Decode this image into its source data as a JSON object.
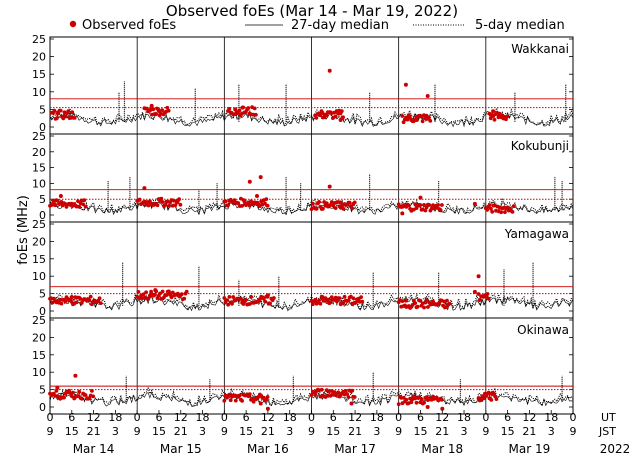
{
  "chart_data": {
    "type": "scatter",
    "title": "Observed foEs (Mar 14 - Mar 19, 2022)",
    "ylabel": "foEs (MHz)",
    "ylim": [
      0,
      25
    ],
    "yticks": [
      0,
      5,
      10,
      15,
      20,
      25
    ],
    "xlim_hours": [
      0,
      144
    ],
    "legend": {
      "observed": "Observed foEs",
      "median27": "27-day median",
      "median5": "5-day median"
    },
    "colors": {
      "observed": "#cc0000",
      "lines": "#000000"
    },
    "ut_label": "UT",
    "jst_label": "JST",
    "ut_ticks": [
      "0",
      "6",
      "12",
      "18",
      "0",
      "6",
      "12",
      "18",
      "0",
      "6",
      "12",
      "18",
      "0",
      "6",
      "12",
      "18",
      "0",
      "6",
      "12",
      "18",
      "0",
      "6",
      "12",
      "18",
      "0"
    ],
    "jst_ticks": [
      "9",
      "15",
      "21",
      "3",
      "9",
      "15",
      "21",
      "3",
      "9",
      "15",
      "21",
      "3",
      "9",
      "15",
      "21",
      "3",
      "9",
      "15",
      "21",
      "3",
      "9",
      "15",
      "21",
      "3",
      "9"
    ],
    "dates": [
      "Mar 14",
      "Mar 15",
      "Mar 16",
      "Mar 17",
      "Mar 18",
      "Mar 19"
    ],
    "year": "2022",
    "stations": [
      {
        "name": "Wakkanai",
        "ref_solid": 8,
        "ref_dotted": 5.5,
        "observed_segments": [
          {
            "start": 0.5,
            "end": 7,
            "level": 3.5
          },
          {
            "start": 26,
            "end": 33,
            "level": 4.5
          },
          {
            "start": 49,
            "end": 57,
            "level": 4.5
          },
          {
            "start": 73,
            "end": 81,
            "level": 3.5
          },
          {
            "start": 97,
            "end": 105,
            "level": 2.5
          },
          {
            "start": 121,
            "end": 126,
            "level": 3
          }
        ],
        "observed_points": [
          [
            2,
            4
          ],
          [
            4,
            3
          ],
          [
            28,
            6
          ],
          [
            30,
            4.5
          ],
          [
            51,
            5
          ],
          [
            53,
            5.5
          ],
          [
            77,
            16
          ],
          [
            75,
            4
          ],
          [
            80,
            2
          ],
          [
            98,
            12
          ],
          [
            99,
            3
          ],
          [
            101,
            2
          ],
          [
            104,
            8.8
          ],
          [
            122,
            4.5
          ]
        ],
        "spikes": [
          [
            19,
            10
          ],
          [
            20.5,
            13
          ],
          [
            40,
            11
          ],
          [
            52,
            12
          ],
          [
            65,
            12
          ],
          [
            88,
            10
          ],
          [
            106,
            12
          ],
          [
            128,
            10
          ],
          [
            142,
            12
          ]
        ]
      },
      {
        "name": "Kokubunji",
        "ref_solid": 8,
        "ref_dotted": 5,
        "observed_segments": [
          {
            "start": 0,
            "end": 10,
            "level": 3.5
          },
          {
            "start": 24,
            "end": 36,
            "level": 4
          },
          {
            "start": 48,
            "end": 60,
            "level": 4
          },
          {
            "start": 72,
            "end": 84,
            "level": 3
          },
          {
            "start": 96,
            "end": 108,
            "level": 2.5
          },
          {
            "start": 120,
            "end": 128,
            "level": 2
          }
        ],
        "observed_points": [
          [
            1,
            4.5
          ],
          [
            3,
            6
          ],
          [
            26,
            8.5
          ],
          [
            30,
            5
          ],
          [
            35,
            4
          ],
          [
            55,
            10.5
          ],
          [
            57,
            6
          ],
          [
            58,
            12
          ],
          [
            77,
            9
          ],
          [
            80,
            4
          ],
          [
            97,
            0.5
          ],
          [
            102,
            5.5
          ],
          [
            117,
            3.5
          ]
        ],
        "spikes": [
          [
            16,
            11
          ],
          [
            22,
            12
          ],
          [
            41,
            8
          ],
          [
            46,
            10
          ],
          [
            65,
            12
          ],
          [
            69,
            10
          ],
          [
            88,
            13
          ],
          [
            107,
            11
          ],
          [
            139,
            12
          ],
          [
            141,
            11
          ]
        ]
      },
      {
        "name": "Yamagawa",
        "ref_solid": 7,
        "ref_dotted": 5,
        "observed_segments": [
          {
            "start": 0,
            "end": 14,
            "level": 3
          },
          {
            "start": 24,
            "end": 38,
            "level": 4.5
          },
          {
            "start": 48,
            "end": 62,
            "level": 3
          },
          {
            "start": 72,
            "end": 86,
            "level": 3
          },
          {
            "start": 96,
            "end": 110,
            "level": 2
          },
          {
            "start": 118,
            "end": 121,
            "level": 4
          }
        ],
        "observed_points": [
          [
            6,
            4
          ],
          [
            29,
            6
          ],
          [
            33,
            5
          ],
          [
            53,
            3
          ],
          [
            60,
            4.5
          ],
          [
            75,
            4
          ],
          [
            85,
            3.5
          ],
          [
            98,
            3
          ],
          [
            105,
            2
          ],
          [
            117,
            5.5
          ],
          [
            118,
            10
          ]
        ],
        "spikes": [
          [
            20,
            14
          ],
          [
            41,
            13
          ],
          [
            52,
            9
          ],
          [
            63,
            10
          ],
          [
            89,
            11
          ],
          [
            107,
            11
          ],
          [
            125,
            12
          ],
          [
            133,
            14
          ]
        ]
      },
      {
        "name": "Okinawa",
        "ref_solid": 6,
        "ref_dotted": 5,
        "observed_segments": [
          {
            "start": 0,
            "end": 12,
            "level": 3.5
          },
          {
            "start": 48,
            "end": 60,
            "level": 2.5
          },
          {
            "start": 72,
            "end": 84,
            "level": 4
          },
          {
            "start": 96,
            "end": 108,
            "level": 2
          },
          {
            "start": 118,
            "end": 123,
            "level": 3
          }
        ],
        "observed_points": [
          [
            2,
            5.5
          ],
          [
            7,
            9
          ],
          [
            58,
            1
          ],
          [
            60,
            -0.5
          ],
          [
            83,
            1
          ],
          [
            100,
            3
          ],
          [
            104,
            0
          ],
          [
            108,
            -0.5
          ],
          [
            121,
            2.5
          ]
        ],
        "spikes": [
          [
            21,
            9
          ],
          [
            44,
            8
          ],
          [
            67,
            9
          ],
          [
            89,
            10
          ],
          [
            113,
            8
          ],
          [
            141,
            9
          ]
        ]
      }
    ]
  }
}
